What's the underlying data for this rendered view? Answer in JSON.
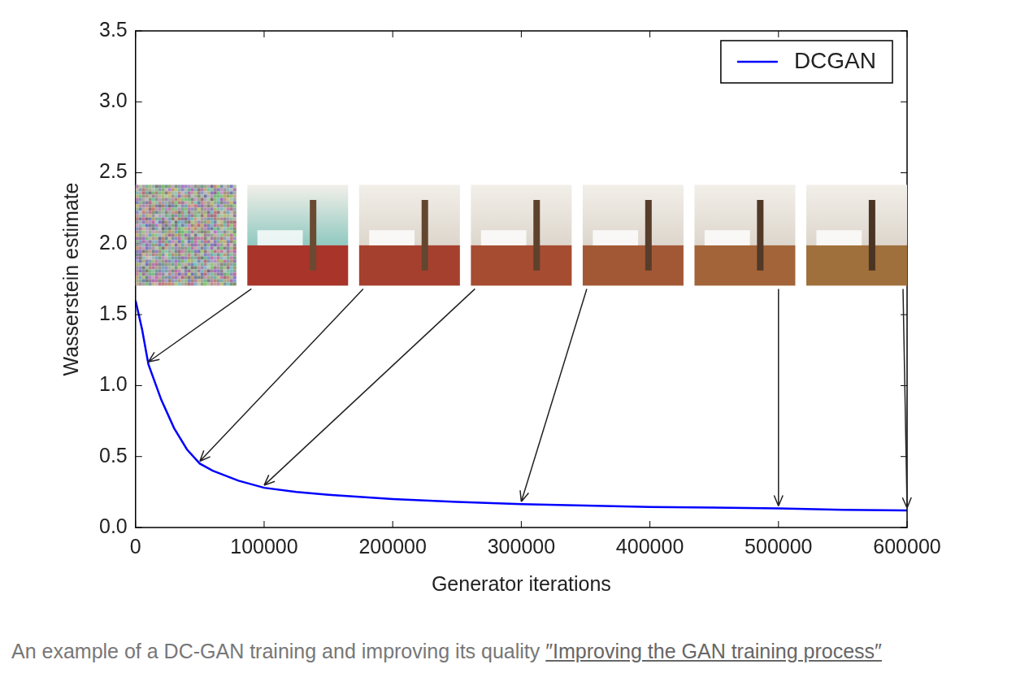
{
  "chart_data": {
    "type": "line",
    "x_label": "Generator iterations",
    "y_label": "Wasserstein estimate",
    "x": [
      0,
      5000,
      10000,
      20000,
      30000,
      40000,
      50000,
      60000,
      80000,
      100000,
      125000,
      150000,
      200000,
      250000,
      300000,
      350000,
      400000,
      450000,
      500000,
      550000,
      600000
    ],
    "series": [
      {
        "name": "DCGAN",
        "color": "#0000ff",
        "values": [
          1.6,
          1.4,
          1.15,
          0.9,
          0.7,
          0.55,
          0.45,
          0.4,
          0.33,
          0.28,
          0.25,
          0.23,
          0.2,
          0.18,
          0.165,
          0.155,
          0.145,
          0.14,
          0.135,
          0.125,
          0.12
        ]
      }
    ],
    "snapshots": [
      0,
      10000,
      50000,
      100000,
      300000,
      500000,
      600000
    ],
    "xlim": [
      0,
      600000
    ],
    "xticks": [
      0,
      100000,
      200000,
      300000,
      400000,
      500000,
      600000
    ],
    "ylim": [
      0,
      3.5
    ],
    "yticks": [
      {
        "value": 0,
        "label": "0.0"
      },
      0.5,
      {
        "value": 1,
        "label": "1.0"
      },
      1.5,
      {
        "value": 2,
        "label": "2.0"
      },
      2.5,
      {
        "value": 3,
        "label": "3.0"
      },
      3.5
    ],
    "grid": false,
    "legend": "upper right"
  },
  "caption": {
    "text": "An example of a DC-GAN training and improving its quality",
    "link": "″Improving the GAN training process″"
  }
}
